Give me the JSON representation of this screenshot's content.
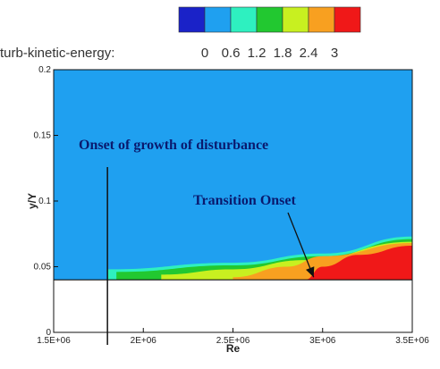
{
  "chart_data": {
    "type": "heatmap",
    "variable_label": "turb-kinetic-energy:",
    "xlabel": "Re",
    "ylabel": "y/Y",
    "xlim": [
      1500000,
      3500000
    ],
    "ylim": [
      0,
      0.2
    ],
    "x_ticks": [
      {
        "value": 1500000,
        "label": "1.5E+06"
      },
      {
        "value": 2000000,
        "label": "2E+06"
      },
      {
        "value": 2500000,
        "label": "2.5E+06"
      },
      {
        "value": 3000000,
        "label": "3E+06"
      },
      {
        "value": 3500000,
        "label": "3.5E+06"
      }
    ],
    "y_ticks": [
      {
        "value": 0,
        "label": "0"
      },
      {
        "value": 0.05,
        "label": "0.05"
      },
      {
        "value": 0.1,
        "label": "0.1"
      },
      {
        "value": 0.15,
        "label": "0.15"
      },
      {
        "value": 0.2,
        "label": "0.2"
      }
    ],
    "legend": {
      "colors": [
        "#1a22c8",
        "#1fa0f0",
        "#2ef0c0",
        "#22c830",
        "#c8f020",
        "#f8a020",
        "#f01818"
      ],
      "labels": [
        "0",
        "0.6",
        "1.2",
        "1.8",
        "2.4",
        "3"
      ]
    },
    "field": {
      "background_level": "#1fa0f0",
      "wall_y": 0.04,
      "contour_layers": [
        {
          "color": "#2ef0c0",
          "boundary_upper": [
            [
              1800000,
              0.048
            ],
            [
              2500000,
              0.053
            ],
            [
              3000000,
              0.06
            ],
            [
              3500000,
              0.073
            ]
          ]
        },
        {
          "color": "#22c830",
          "boundary_upper": [
            [
              1850000,
              0.046
            ],
            [
              2500000,
              0.051
            ],
            [
              3000000,
              0.058
            ],
            [
              3500000,
              0.071
            ]
          ]
        },
        {
          "color": "#c8f020",
          "boundary_upper": [
            [
              2100000,
              0.044
            ],
            [
              2500000,
              0.048
            ],
            [
              2900000,
              0.055
            ],
            [
              3500000,
              0.069
            ]
          ]
        },
        {
          "color": "#f8a020",
          "boundary_upper": [
            [
              2500000,
              0.042
            ],
            [
              2800000,
              0.05
            ],
            [
              3000000,
              0.058
            ],
            [
              3500000,
              0.068
            ]
          ]
        },
        {
          "color": "#f01818",
          "boundary_upper": [
            [
              2900000,
              0.04
            ],
            [
              3000000,
              0.05
            ],
            [
              3200000,
              0.059
            ],
            [
              3500000,
              0.066
            ]
          ]
        }
      ]
    },
    "annotations": [
      {
        "text": "Onset of growth of disturbance",
        "marker_x": 1800000
      },
      {
        "text": "Transition Onset",
        "arrow_to": [
          2950000,
          0.042
        ]
      }
    ]
  }
}
